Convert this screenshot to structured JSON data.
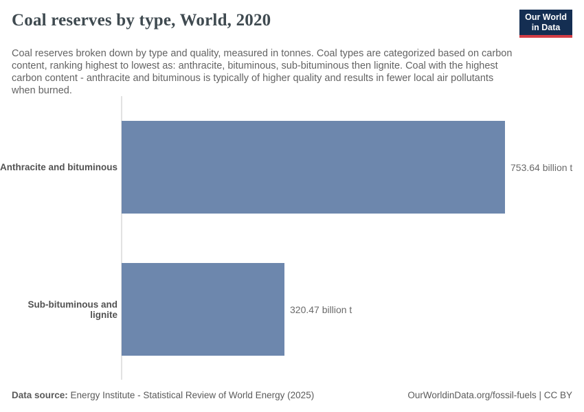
{
  "header": {
    "title": "Coal reserves by type, World, 2020",
    "subtitle": "Coal reserves broken down by type and quality, measured in tonnes. Coal types are categorized based on carbon content, ranking highest to lowest as: anthracite, bituminous, sub-bituminous then lignite. Coal with the highest carbon content - anthracite and bituminous is typically of higher quality and results in fewer local air pollutants when burned.",
    "logo": {
      "line1": "Our World",
      "line2": "in Data",
      "bg_color": "#142e52",
      "accent_color": "#d43d45"
    }
  },
  "chart_data": {
    "type": "bar",
    "orientation": "horizontal",
    "categories": [
      "Anthracite and bituminous",
      "Sub-bituminous and lignite"
    ],
    "values": [
      753.64,
      320.47
    ],
    "value_labels": [
      "753.64 billion t",
      "320.47 billion t"
    ],
    "unit": "billion t",
    "bar_color": "#6d87ad",
    "axis_line_color": "#e2e2e2",
    "xlim": [
      0,
      753.64
    ],
    "grid": false,
    "legend": "none",
    "title": "Coal reserves by type, World, 2020"
  },
  "footer": {
    "data_source_label": "Data source:",
    "data_source": "Energy Institute - Statistical Review of World Energy (2025)",
    "attribution": "OurWorldinData.org/fossil-fuels | CC BY"
  }
}
